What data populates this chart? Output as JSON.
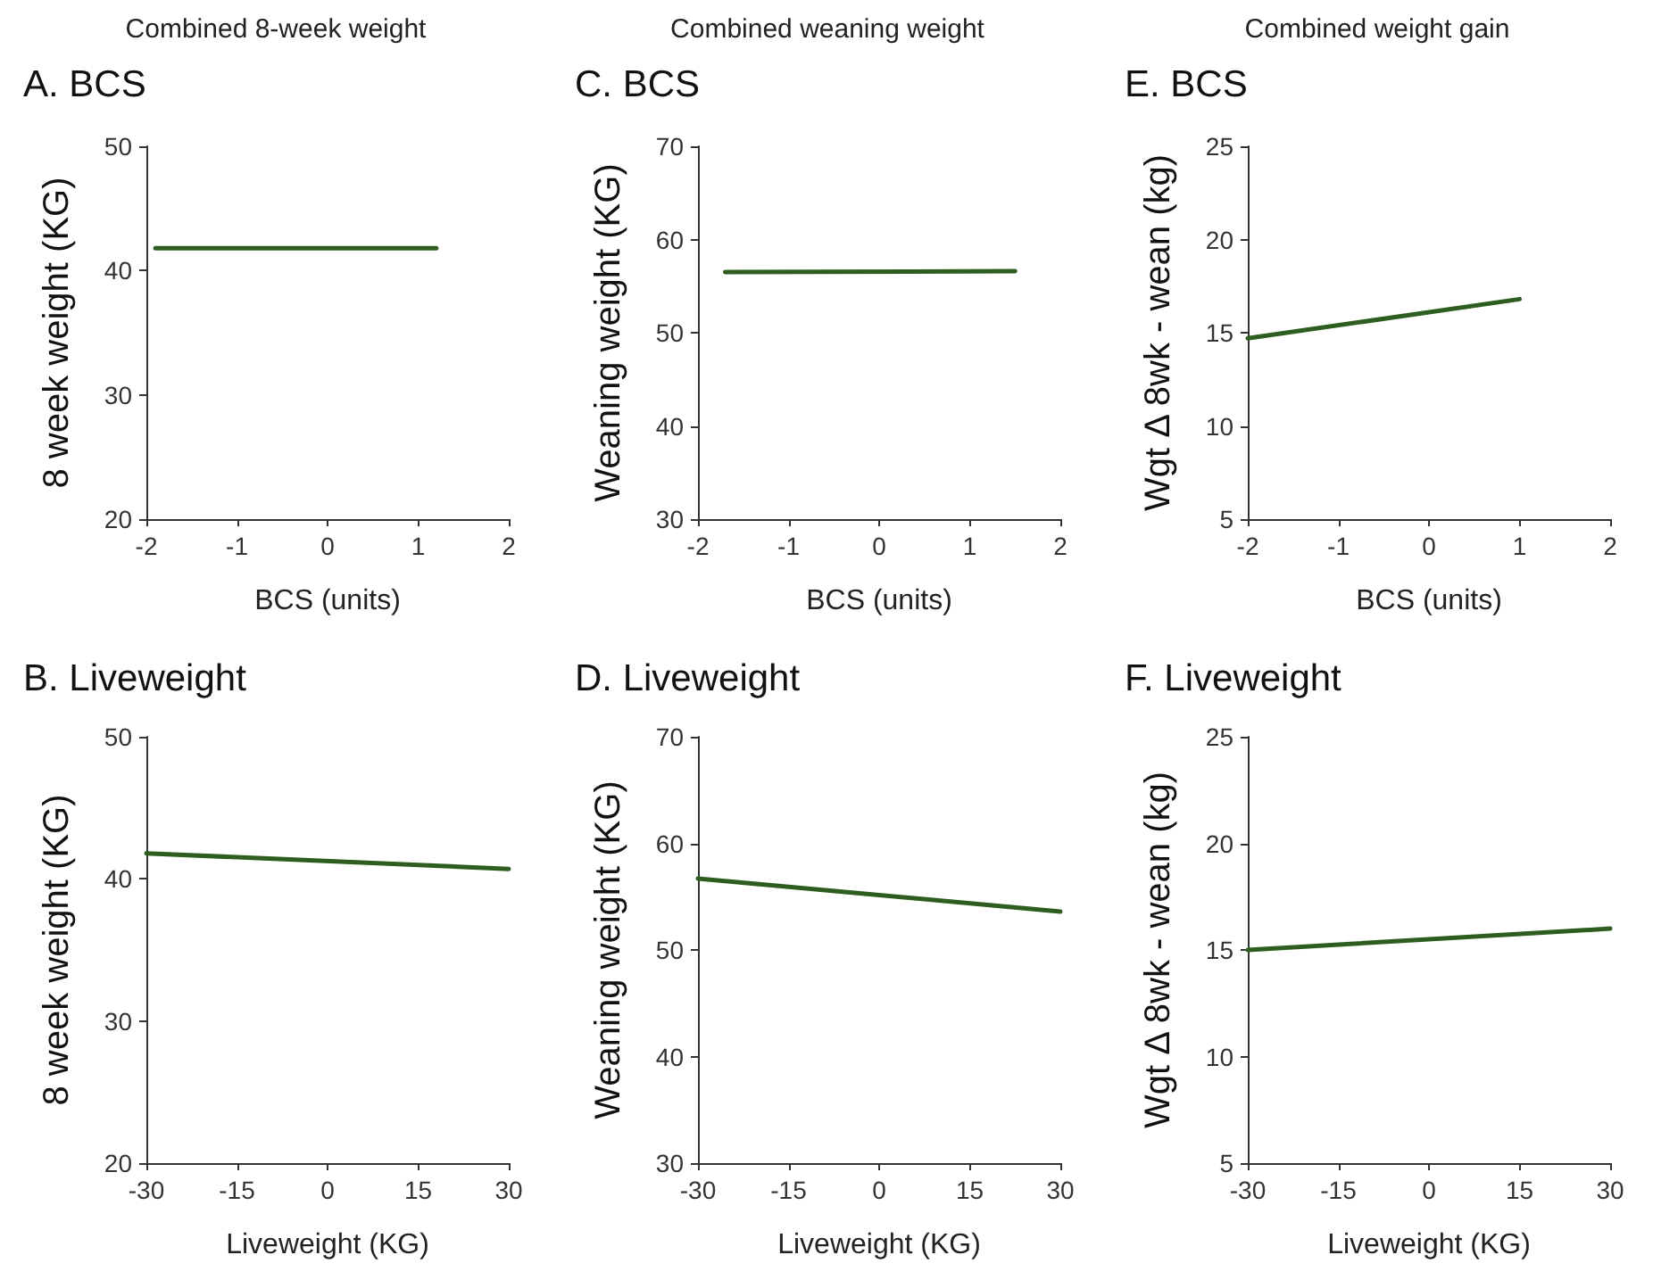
{
  "chart_data": [
    {
      "type": "line",
      "title": "Combined 8-week weight",
      "subtitle": "A. BCS",
      "xlabel": "BCS (units)",
      "ylabel": "8 week weight (KG)",
      "x": [
        -1.9,
        1.2
      ],
      "series": [
        {
          "color": "#2e5e1f",
          "values": [
            41.8,
            41.8
          ]
        }
      ],
      "xlim": [
        -2,
        2
      ],
      "xticks": [
        -2,
        -1,
        0,
        1,
        2
      ],
      "ylim": [
        20,
        50
      ],
      "yticks": [
        20,
        30,
        40,
        50
      ],
      "grid": false,
      "marker": "none",
      "line_style": "solid"
    },
    {
      "type": "line",
      "title": "Combined weaning weight",
      "subtitle": "C. BCS",
      "xlabel": "BCS (units)",
      "ylabel": "Weaning weight (KG)",
      "x": [
        -1.7,
        1.5
      ],
      "series": [
        {
          "color": "#2e5e1f",
          "values": [
            56.5,
            56.6
          ]
        }
      ],
      "xlim": [
        -2,
        2
      ],
      "xticks": [
        -2,
        -1,
        0,
        1,
        2
      ],
      "ylim": [
        30,
        70
      ],
      "yticks": [
        30,
        40,
        50,
        60,
        70
      ],
      "grid": false,
      "marker": "none",
      "line_style": "solid"
    },
    {
      "type": "line",
      "title": "Combined weight gain",
      "subtitle": "E. BCS",
      "xlabel": "BCS (units)",
      "ylabel": "Wgt Δ 8wk - wean (kg)",
      "x": [
        -2,
        1
      ],
      "series": [
        {
          "color": "#2e5e1f",
          "values": [
            14.7,
            16.8
          ]
        }
      ],
      "xlim": [
        -2,
        2
      ],
      "xticks": [
        -2,
        -1,
        0,
        1,
        2
      ],
      "ylim": [
        5,
        25
      ],
      "yticks": [
        5,
        10,
        15,
        20,
        25
      ],
      "grid": false,
      "marker": "none",
      "line_style": "solid"
    },
    {
      "type": "line",
      "title": "B. Liveweight",
      "xlabel": "Liveweight (KG)",
      "ylabel": "8 week weight (KG)",
      "x": [
        -30,
        30
      ],
      "series": [
        {
          "color": "#2e5e1f",
          "values": [
            41.8,
            40.7
          ]
        }
      ],
      "xlim": [
        -30,
        30
      ],
      "xticks": [
        -30,
        -15,
        0,
        15,
        30
      ],
      "ylim": [
        20,
        50
      ],
      "yticks": [
        20,
        30,
        40,
        50
      ],
      "grid": false,
      "marker": "none",
      "line_style": "solid"
    },
    {
      "type": "line",
      "title": "D. Liveweight",
      "xlabel": "Liveweight (KG)",
      "ylabel": "Weaning weight (KG)",
      "x": [
        -30,
        30
      ],
      "series": [
        {
          "color": "#2e5e1f",
          "values": [
            56.7,
            53.6
          ]
        }
      ],
      "xlim": [
        -30,
        30
      ],
      "xticks": [
        -30,
        -15,
        0,
        15,
        30
      ],
      "ylim": [
        30,
        70
      ],
      "yticks": [
        30,
        40,
        50,
        60,
        70
      ],
      "grid": false,
      "marker": "none",
      "line_style": "solid"
    },
    {
      "type": "line",
      "title": "F. Liveweight",
      "xlabel": "Liveweight (KG)",
      "ylabel": "Wgt Δ 8wk - wean (kg)",
      "x": [
        -30,
        30
      ],
      "series": [
        {
          "color": "#2e5e1f",
          "values": [
            15.0,
            16.0
          ]
        }
      ],
      "xlim": [
        -30,
        30
      ],
      "xticks": [
        -30,
        -15,
        0,
        15,
        30
      ],
      "ylim": [
        5,
        25
      ],
      "yticks": [
        5,
        10,
        15,
        20,
        25
      ],
      "grid": false,
      "marker": "none",
      "line_style": "solid"
    }
  ]
}
